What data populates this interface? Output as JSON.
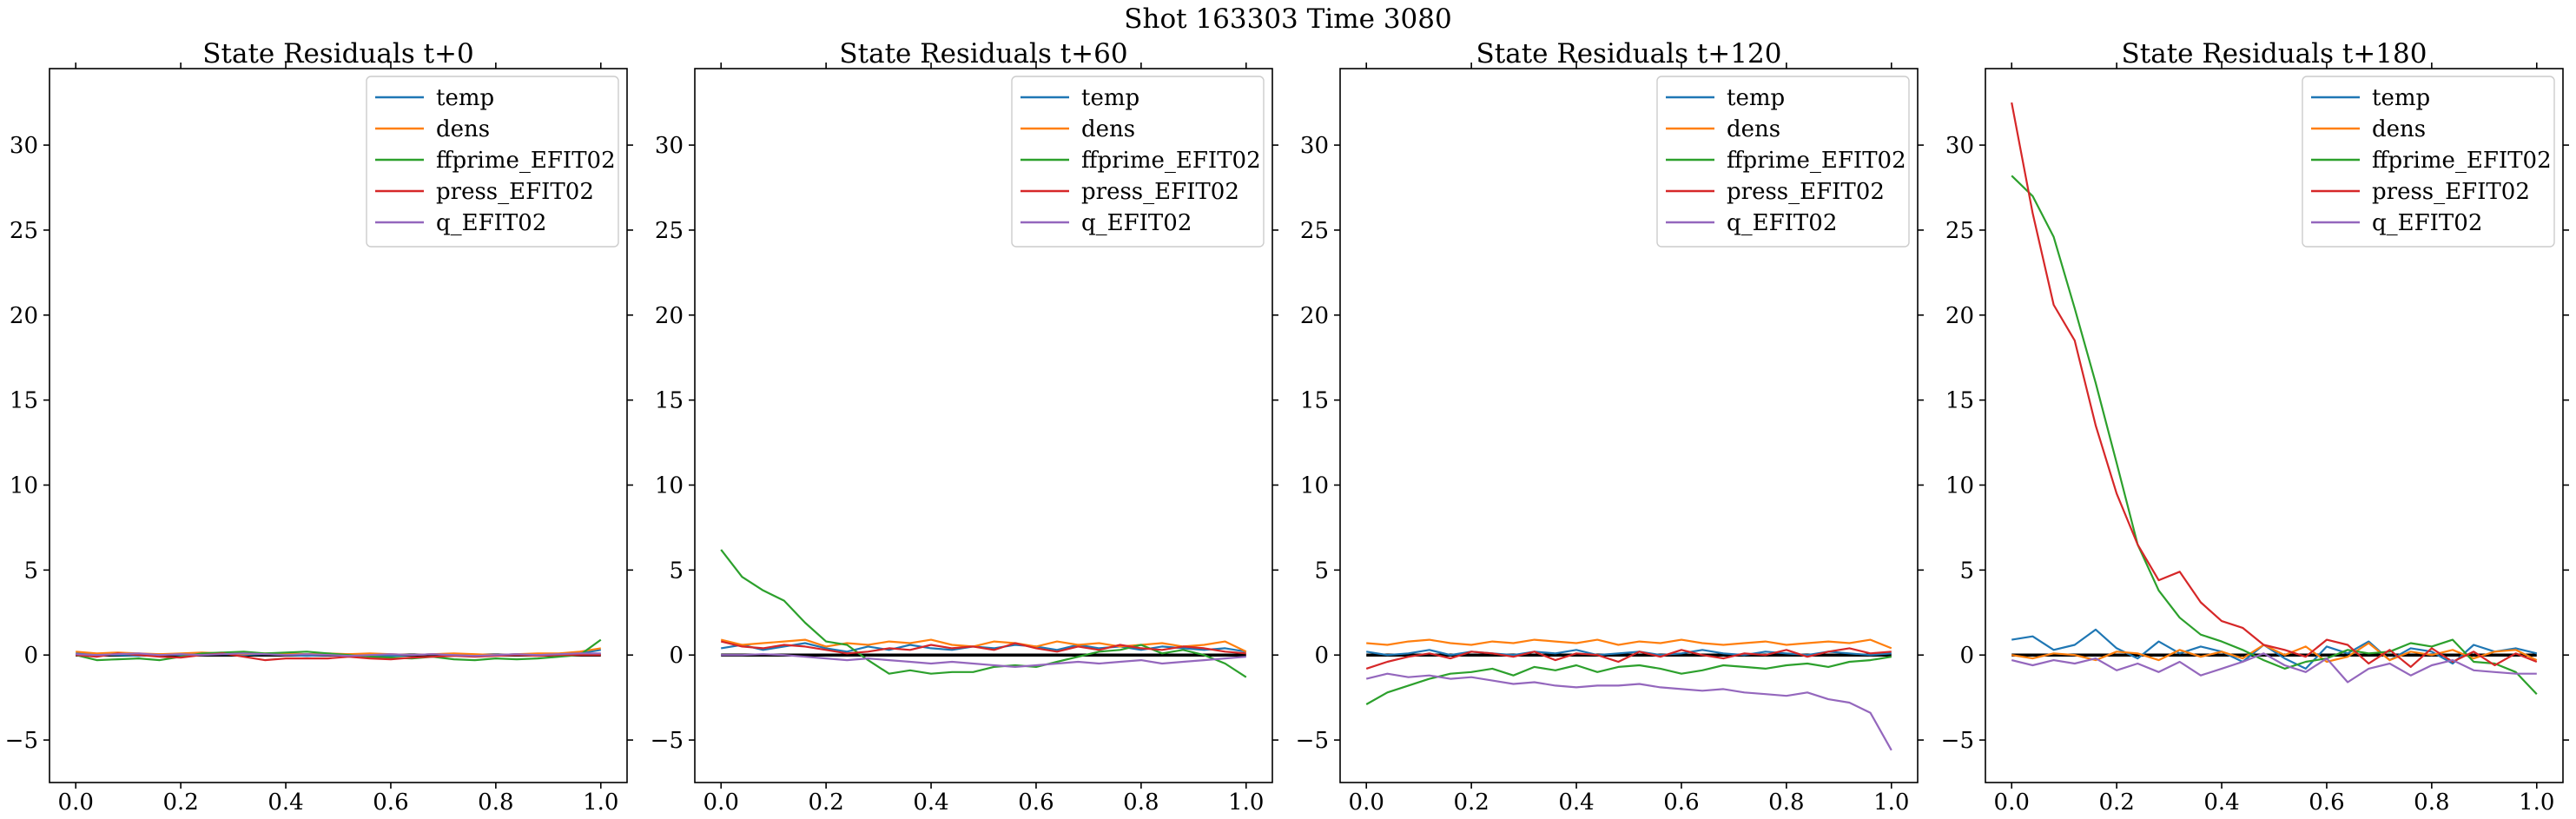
{
  "figure": {
    "suptitle": "Shot 163303   Time 3080"
  },
  "colors": {
    "temp": "#1f77b4",
    "dens": "#ff7f0e",
    "ffprime_EFIT02": "#2ca02c",
    "press_EFIT02": "#d62728",
    "q_EFIT02": "#9467bd",
    "zero_line": "#000000"
  },
  "chart_data": [
    {
      "type": "line",
      "title": "State Residuals t+0",
      "xlim": [
        -0.05,
        1.05
      ],
      "ylim": [
        -7.5,
        34.5
      ],
      "xticks": [
        0.0,
        0.2,
        0.4,
        0.6,
        0.8,
        1.0
      ],
      "xtick_labels": [
        "0.0",
        "0.2",
        "0.4",
        "0.6",
        "0.8",
        "1.0"
      ],
      "yticks": [
        -5,
        0,
        5,
        10,
        15,
        20,
        25,
        30
      ],
      "ytick_labels": [
        "−5",
        "0",
        "5",
        "10",
        "15",
        "20",
        "25",
        "30"
      ],
      "legend": "top-right",
      "x": [
        0.0,
        0.04,
        0.08,
        0.12,
        0.16,
        0.2,
        0.24,
        0.28,
        0.32,
        0.36,
        0.4,
        0.44,
        0.48,
        0.52,
        0.56,
        0.6,
        0.64,
        0.68,
        0.72,
        0.76,
        0.8,
        0.84,
        0.88,
        0.92,
        0.96,
        1.0
      ],
      "series": [
        {
          "name": "temp",
          "values": [
            0.1,
            0.05,
            0.0,
            -0.05,
            0.05,
            0.0,
            0.1,
            0.05,
            0.0,
            0.05,
            0.0,
            -0.05,
            0.0,
            0.05,
            0.0,
            -0.05,
            0.0,
            0.05,
            0.0,
            -0.05,
            0.0,
            0.05,
            0.0,
            0.05,
            0.1,
            0.3
          ]
        },
        {
          "name": "dens",
          "values": [
            0.2,
            0.1,
            0.15,
            0.1,
            0.05,
            0.1,
            0.15,
            0.1,
            0.05,
            0.1,
            0.1,
            0.05,
            0.1,
            0.05,
            0.1,
            0.05,
            0.0,
            0.05,
            0.1,
            0.05,
            0.0,
            0.05,
            0.1,
            0.1,
            0.2,
            0.4
          ]
        },
        {
          "name": "ffprime_EFIT02",
          "values": [
            0.0,
            -0.3,
            -0.25,
            -0.2,
            -0.3,
            -0.1,
            0.1,
            0.15,
            0.2,
            0.1,
            0.15,
            0.2,
            0.1,
            0.0,
            -0.1,
            -0.15,
            -0.2,
            -0.1,
            -0.25,
            -0.3,
            -0.2,
            -0.25,
            -0.2,
            -0.1,
            0.0,
            0.9
          ]
        },
        {
          "name": "press_EFIT02",
          "values": [
            0.0,
            -0.1,
            0.1,
            0.0,
            -0.1,
            -0.15,
            0.0,
            0.1,
            -0.1,
            -0.3,
            -0.2,
            -0.2,
            -0.2,
            -0.1,
            -0.2,
            -0.25,
            -0.15,
            -0.1,
            -0.05,
            -0.1,
            -0.05,
            0.0,
            -0.05,
            0.0,
            0.0,
            0.0
          ]
        },
        {
          "name": "q_EFIT02",
          "values": [
            0.05,
            0.0,
            0.05,
            0.1,
            0.0,
            0.05,
            0.0,
            0.05,
            0.1,
            0.05,
            0.0,
            0.05,
            0.0,
            -0.05,
            0.0,
            0.05,
            0.0,
            0.05,
            0.0,
            -0.05,
            0.0,
            0.05,
            0.0,
            0.05,
            0.1,
            0.1
          ]
        }
      ]
    },
    {
      "type": "line",
      "title": "State Residuals t+60",
      "xlim": [
        -0.05,
        1.05
      ],
      "ylim": [
        -7.5,
        34.5
      ],
      "xticks": [
        0.0,
        0.2,
        0.4,
        0.6,
        0.8,
        1.0
      ],
      "xtick_labels": [
        "0.0",
        "0.2",
        "0.4",
        "0.6",
        "0.8",
        "1.0"
      ],
      "yticks": [
        -5,
        0,
        5,
        10,
        15,
        20,
        25,
        30
      ],
      "ytick_labels": [
        "−5",
        "0",
        "5",
        "10",
        "15",
        "20",
        "25",
        "30"
      ],
      "legend": "top-right",
      "x": [
        0.0,
        0.04,
        0.08,
        0.12,
        0.16,
        0.2,
        0.24,
        0.28,
        0.32,
        0.36,
        0.4,
        0.44,
        0.48,
        0.52,
        0.56,
        0.6,
        0.64,
        0.68,
        0.72,
        0.76,
        0.8,
        0.84,
        0.88,
        0.92,
        0.96,
        1.0
      ],
      "series": [
        {
          "name": "temp",
          "values": [
            0.4,
            0.6,
            0.3,
            0.5,
            0.7,
            0.4,
            0.2,
            0.5,
            0.3,
            0.6,
            0.4,
            0.3,
            0.5,
            0.4,
            0.6,
            0.5,
            0.3,
            0.6,
            0.4,
            0.5,
            0.3,
            0.5,
            0.4,
            0.3,
            0.4,
            0.2
          ]
        },
        {
          "name": "dens",
          "values": [
            0.9,
            0.6,
            0.7,
            0.8,
            0.9,
            0.5,
            0.7,
            0.6,
            0.8,
            0.7,
            0.9,
            0.6,
            0.5,
            0.8,
            0.7,
            0.5,
            0.8,
            0.6,
            0.7,
            0.5,
            0.6,
            0.7,
            0.5,
            0.6,
            0.8,
            0.2
          ]
        },
        {
          "name": "ffprime_EFIT02",
          "values": [
            6.2,
            4.6,
            3.8,
            3.2,
            1.9,
            0.8,
            0.6,
            -0.3,
            -1.1,
            -0.9,
            -1.1,
            -1.0,
            -1.0,
            -0.7,
            -0.6,
            -0.7,
            -0.4,
            -0.1,
            0.2,
            0.3,
            0.6,
            0.1,
            0.3,
            0.0,
            -0.5,
            -1.3
          ]
        },
        {
          "name": "press_EFIT02",
          "values": [
            0.8,
            0.5,
            0.4,
            0.6,
            0.5,
            0.3,
            0.1,
            0.2,
            0.4,
            0.3,
            0.6,
            0.4,
            0.5,
            0.3,
            0.7,
            0.4,
            0.2,
            0.5,
            0.3,
            0.6,
            0.4,
            0.3,
            0.5,
            0.4,
            0.2,
            0.1
          ]
        },
        {
          "name": "q_EFIT02",
          "values": [
            0.0,
            0.0,
            0.05,
            0.0,
            -0.1,
            -0.2,
            -0.3,
            -0.2,
            -0.3,
            -0.4,
            -0.5,
            -0.4,
            -0.5,
            -0.6,
            -0.7,
            -0.6,
            -0.5,
            -0.4,
            -0.5,
            -0.4,
            -0.3,
            -0.5,
            -0.4,
            -0.3,
            -0.2,
            -0.1
          ]
        }
      ]
    },
    {
      "type": "line",
      "title": "State Residuals t+120",
      "xlim": [
        -0.05,
        1.05
      ],
      "ylim": [
        -7.5,
        34.5
      ],
      "xticks": [
        0.0,
        0.2,
        0.4,
        0.6,
        0.8,
        1.0
      ],
      "xtick_labels": [
        "0.0",
        "0.2",
        "0.4",
        "0.6",
        "0.8",
        "1.0"
      ],
      "yticks": [
        -5,
        0,
        5,
        10,
        15,
        20,
        25,
        30
      ],
      "ytick_labels": [
        "−5",
        "0",
        "5",
        "10",
        "15",
        "20",
        "25",
        "30"
      ],
      "legend": "top-right",
      "x": [
        0.0,
        0.04,
        0.08,
        0.12,
        0.16,
        0.2,
        0.24,
        0.28,
        0.32,
        0.36,
        0.4,
        0.44,
        0.48,
        0.52,
        0.56,
        0.6,
        0.64,
        0.68,
        0.72,
        0.76,
        0.8,
        0.84,
        0.88,
        0.92,
        0.96,
        1.0
      ],
      "series": [
        {
          "name": "temp",
          "values": [
            0.2,
            0.0,
            0.1,
            0.3,
            0.0,
            0.2,
            0.1,
            0.0,
            0.2,
            0.1,
            0.3,
            0.0,
            0.1,
            0.2,
            0.0,
            0.1,
            0.3,
            0.1,
            0.0,
            0.2,
            0.1,
            0.0,
            0.2,
            0.1,
            0.0,
            0.1
          ]
        },
        {
          "name": "dens",
          "values": [
            0.7,
            0.6,
            0.8,
            0.9,
            0.7,
            0.6,
            0.8,
            0.7,
            0.9,
            0.8,
            0.7,
            0.9,
            0.6,
            0.8,
            0.7,
            0.9,
            0.7,
            0.6,
            0.7,
            0.8,
            0.6,
            0.7,
            0.8,
            0.7,
            0.9,
            0.4
          ]
        },
        {
          "name": "ffprime_EFIT02",
          "values": [
            -2.9,
            -2.2,
            -1.8,
            -1.4,
            -1.1,
            -1.0,
            -0.8,
            -1.2,
            -0.7,
            -0.9,
            -0.6,
            -1.0,
            -0.7,
            -0.6,
            -0.8,
            -1.1,
            -0.9,
            -0.6,
            -0.7,
            -0.8,
            -0.6,
            -0.5,
            -0.7,
            -0.4,
            -0.3,
            -0.1
          ]
        },
        {
          "name": "press_EFIT02",
          "values": [
            -0.8,
            -0.4,
            -0.1,
            0.1,
            -0.2,
            0.2,
            0.1,
            -0.1,
            0.2,
            -0.3,
            0.1,
            0.0,
            -0.4,
            0.2,
            -0.1,
            0.3,
            0.0,
            -0.2,
            0.1,
            0.0,
            0.3,
            -0.1,
            0.2,
            0.4,
            0.1,
            0.2
          ]
        },
        {
          "name": "q_EFIT02",
          "values": [
            -1.4,
            -1.1,
            -1.3,
            -1.2,
            -1.4,
            -1.3,
            -1.5,
            -1.7,
            -1.6,
            -1.8,
            -1.9,
            -1.8,
            -1.8,
            -1.7,
            -1.9,
            -2.0,
            -2.1,
            -2.0,
            -2.2,
            -2.3,
            -2.4,
            -2.2,
            -2.6,
            -2.8,
            -3.4,
            -5.6
          ]
        }
      ]
    },
    {
      "type": "line",
      "title": "State Residuals t+180",
      "xlim": [
        -0.05,
        1.05
      ],
      "ylim": [
        -7.5,
        34.5
      ],
      "xticks": [
        0.0,
        0.2,
        0.4,
        0.6,
        0.8,
        1.0
      ],
      "xtick_labels": [
        "0.0",
        "0.2",
        "0.4",
        "0.6",
        "0.8",
        "1.0"
      ],
      "yticks": [
        -5,
        0,
        5,
        10,
        15,
        20,
        25,
        30
      ],
      "ytick_labels": [
        "−5",
        "0",
        "5",
        "10",
        "15",
        "20",
        "25",
        "30"
      ],
      "legend": "top-right",
      "x": [
        0.0,
        0.04,
        0.08,
        0.12,
        0.16,
        0.2,
        0.24,
        0.28,
        0.32,
        0.36,
        0.4,
        0.44,
        0.48,
        0.52,
        0.56,
        0.6,
        0.64,
        0.68,
        0.72,
        0.76,
        0.8,
        0.84,
        0.88,
        0.92,
        0.96,
        1.0
      ],
      "series": [
        {
          "name": "temp",
          "values": [
            0.9,
            1.1,
            0.3,
            0.6,
            1.5,
            0.4,
            -0.2,
            0.8,
            0.1,
            0.5,
            0.2,
            -0.4,
            0.6,
            -0.2,
            -0.8,
            0.5,
            0.1,
            0.8,
            -0.3,
            0.4,
            0.2,
            -0.5,
            0.6,
            0.2,
            0.4,
            0.1
          ]
        },
        {
          "name": "dens",
          "values": [
            0.0,
            -0.2,
            0.1,
            0.0,
            -0.3,
            0.2,
            0.1,
            -0.3,
            0.3,
            -0.1,
            0.2,
            -0.2,
            0.6,
            0.0,
            0.5,
            -0.4,
            -0.1,
            0.7,
            -0.3,
            0.2,
            0.0,
            0.3,
            -0.2,
            0.2,
            0.3,
            -0.3
          ]
        },
        {
          "name": "ffprime_EFIT02",
          "values": [
            28.2,
            27.0,
            24.6,
            20.4,
            16.0,
            11.3,
            6.5,
            3.8,
            2.2,
            1.2,
            0.8,
            0.3,
            -0.3,
            -0.8,
            -0.4,
            -0.2,
            0.3,
            0.1,
            0.2,
            0.7,
            0.5,
            0.9,
            -0.4,
            -0.5,
            -1.0,
            -2.3
          ]
        },
        {
          "name": "press_EFIT02",
          "values": [
            32.5,
            26.0,
            20.6,
            18.5,
            13.5,
            9.5,
            6.5,
            4.4,
            4.9,
            3.1,
            2.0,
            1.6,
            0.6,
            0.3,
            -0.1,
            0.9,
            0.6,
            -0.5,
            0.3,
            -0.7,
            0.4,
            -0.4,
            0.2,
            -0.6,
            0.1,
            -0.4
          ]
        },
        {
          "name": "q_EFIT02",
          "values": [
            -0.3,
            -0.6,
            -0.3,
            -0.5,
            -0.2,
            -0.9,
            -0.5,
            -1.0,
            -0.4,
            -1.2,
            -0.8,
            -0.4,
            0.1,
            -0.6,
            -1.0,
            -0.2,
            -1.6,
            -0.8,
            -0.5,
            -1.2,
            -0.6,
            -0.3,
            -0.9,
            -1.0,
            -1.1,
            -1.1
          ]
        }
      ]
    }
  ]
}
